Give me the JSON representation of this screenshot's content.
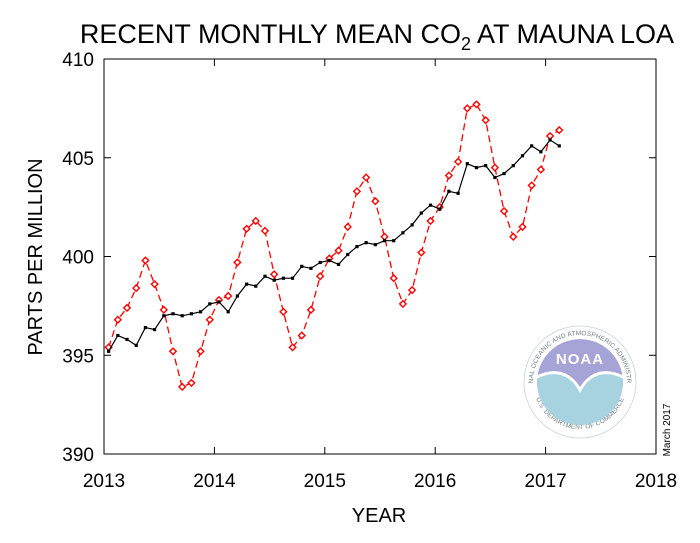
{
  "colors": {
    "series_monthly": "#ff0000",
    "series_trend": "#000000",
    "noaa_purple": "#a6a3d6",
    "noaa_teal": "#a7d2df",
    "noaa_ring_text": "#6f7c86"
  },
  "logo": {
    "name": "noaa-logo",
    "letters": "NOAA",
    "ring_text": "NATIONAL OCEANIC AND ATMOSPHERIC ADMINISTRATION",
    "ring_text_bottom": "U.S. DEPARTMENT OF COMMERCE"
  },
  "chart_data": {
    "type": "line",
    "title_main": "RECENT MONTHLY MEAN CO",
    "title_sub": "2",
    "title_rest": " AT MAUNA LOA",
    "xlabel": "YEAR",
    "ylabel": "PARTS PER MILLION",
    "note": "March 2017",
    "xlim": [
      2013,
      2018
    ],
    "ylim": [
      390,
      410
    ],
    "x_ticks": [
      "2013",
      "2014",
      "2015",
      "2016",
      "2017",
      "2018"
    ],
    "y_ticks": [
      "390",
      "395",
      "400",
      "405",
      "410"
    ],
    "x_tick_values": [
      2013,
      2014,
      2015,
      2016,
      2017,
      2018
    ],
    "y_tick_values": [
      390,
      395,
      400,
      405,
      410
    ],
    "grid": false,
    "legend": "none",
    "start": 2013.042,
    "step": 0.0833,
    "series": [
      {
        "style": "red dashed line with diamond markers",
        "values": [
          395.4,
          396.8,
          397.4,
          398.4,
          399.8,
          398.6,
          397.3,
          395.2,
          393.4,
          393.6,
          395.2,
          396.8,
          397.8,
          398.0,
          399.7,
          401.4,
          401.8,
          401.3,
          399.1,
          397.2,
          395.4,
          396.0,
          397.3,
          399.0,
          399.9,
          400.3,
          401.5,
          403.3,
          404.0,
          402.8,
          401.0,
          398.9,
          397.6,
          398.3,
          400.2,
          401.8,
          402.5,
          404.1,
          404.8,
          407.5,
          407.7,
          406.9,
          404.5,
          402.3,
          401.0,
          401.5,
          403.6,
          404.4,
          406.1,
          406.4
        ]
      },
      {
        "style": "black solid line with square markers",
        "values": [
          395.2,
          396.0,
          395.8,
          395.5,
          396.4,
          396.3,
          397.0,
          397.1,
          397.0,
          397.1,
          397.2,
          397.6,
          397.7,
          397.2,
          398.0,
          398.6,
          398.5,
          399.0,
          398.8,
          398.9,
          398.9,
          399.5,
          399.4,
          399.7,
          399.8,
          399.6,
          400.1,
          400.5,
          400.7,
          400.6,
          400.8,
          400.8,
          401.2,
          401.6,
          402.2,
          402.6,
          402.4,
          403.3,
          403.2,
          404.7,
          404.5,
          404.6,
          404.0,
          404.2,
          404.6,
          405.1,
          405.6,
          405.3,
          405.9,
          405.6
        ]
      }
    ]
  }
}
